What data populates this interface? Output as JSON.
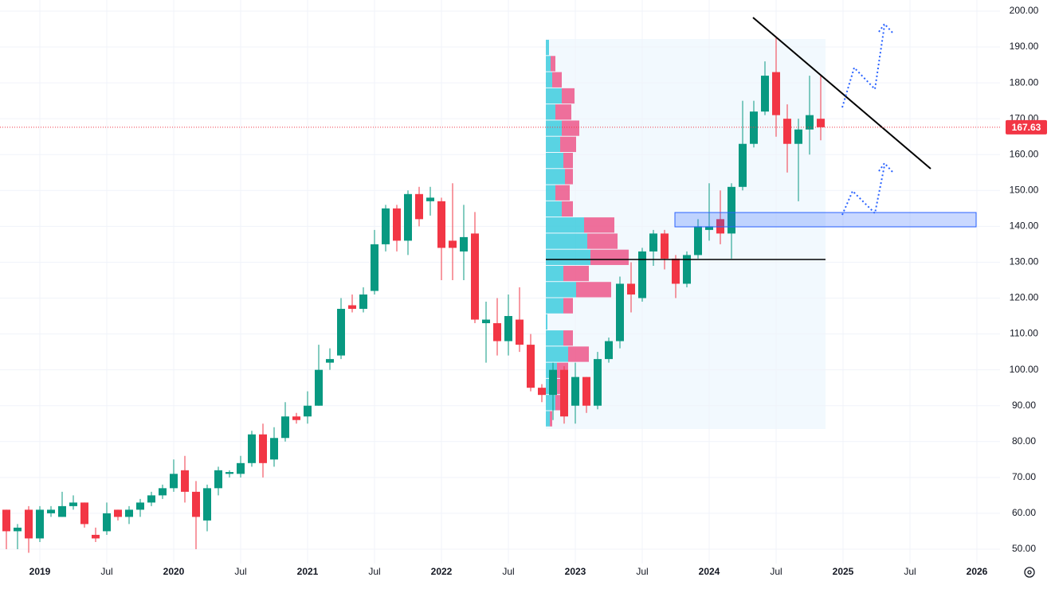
{
  "chart_data": {
    "type": "candlestick",
    "categories": [
      null,
      null,
      null,
      "2019",
      null,
      null,
      null,
      null,
      null,
      "Jul",
      null,
      null,
      null,
      null,
      null,
      "2020",
      null,
      null,
      null,
      null,
      null,
      "Jul",
      null,
      null,
      null,
      null,
      null,
      "2021",
      null,
      null,
      null,
      null,
      null,
      "Jul",
      null,
      null,
      null,
      null,
      null,
      "2022",
      null,
      null,
      null,
      null,
      null,
      "Jul",
      null,
      null,
      null,
      null,
      null,
      "2023",
      null,
      null,
      null,
      null,
      null,
      "Jul",
      null,
      null,
      null,
      null,
      null,
      "2024",
      null,
      null,
      null,
      null,
      null,
      "Jul",
      null,
      null,
      null,
      null,
      null,
      "2025",
      null,
      null,
      null,
      null,
      null,
      "Jul",
      null,
      null,
      null,
      null,
      null,
      "2026"
    ],
    "open": [
      61,
      55,
      61,
      53,
      60,
      59,
      62,
      63,
      54,
      55,
      61,
      59,
      61,
      63,
      65,
      67,
      72,
      66,
      58,
      67,
      71,
      71,
      74,
      82,
      75,
      81,
      87,
      87,
      90,
      102,
      104,
      118,
      117,
      122,
      135,
      145,
      136,
      149,
      147,
      147,
      136,
      133,
      138,
      113,
      113,
      108,
      114,
      107,
      95,
      93,
      100,
      90,
      98,
      90,
      103,
      108,
      124,
      120,
      133,
      138,
      131,
      124,
      132,
      139,
      142,
      138,
      151,
      163,
      172,
      183,
      170,
      163,
      167,
      170,
      null,
      null,
      null,
      null,
      null,
      null,
      null,
      null,
      null,
      null,
      null,
      null,
      null,
      null
    ],
    "high": [
      61,
      57,
      62,
      62,
      62,
      66,
      65,
      63,
      56,
      63,
      61,
      62,
      64,
      66,
      68,
      75,
      76,
      69,
      68,
      73,
      72,
      76,
      83,
      85,
      84,
      91,
      88,
      94,
      107,
      106,
      120,
      121,
      123,
      139,
      146,
      146,
      150,
      151,
      151,
      148,
      152,
      146,
      144,
      119,
      120,
      121,
      123,
      110,
      96,
      102,
      101,
      102,
      98,
      105,
      109,
      126,
      130,
      134,
      139,
      139,
      132,
      133,
      142,
      152,
      150,
      152,
      175,
      175,
      186,
      193,
      174,
      170,
      182,
      182,
      null,
      null,
      null,
      null,
      null,
      null,
      null,
      null,
      null,
      null,
      null,
      null,
      null,
      null
    ],
    "low": [
      50,
      50,
      49,
      52,
      59,
      59,
      61,
      56,
      52,
      54,
      58,
      57,
      59,
      62,
      64,
      66,
      63,
      50,
      55,
      65,
      70,
      70,
      73,
      70,
      73,
      80,
      85,
      85,
      90,
      100,
      103,
      116,
      116,
      121,
      133,
      133,
      132,
      140,
      143,
      125,
      125,
      125,
      113,
      102,
      104,
      104,
      105,
      94,
      91,
      86,
      85,
      85,
      88,
      89,
      102,
      106,
      116,
      119,
      129,
      128,
      120,
      123,
      131,
      136,
      135,
      131,
      150,
      162,
      171,
      165,
      155,
      147,
      160,
      164,
      null,
      null,
      null,
      null,
      null,
      null,
      null,
      null,
      null,
      null,
      null,
      null,
      null,
      null
    ],
    "close": [
      55,
      56,
      53,
      61,
      61,
      62,
      63,
      57,
      53,
      60,
      59,
      61,
      63,
      65,
      67,
      71,
      66,
      59,
      67,
      72,
      71.5,
      74,
      82,
      74,
      81,
      87,
      86,
      90,
      100,
      103,
      117,
      117,
      121,
      135,
      145,
      136,
      149,
      142,
      148,
      134,
      134,
      137,
      114,
      114,
      108,
      115,
      107,
      95,
      93,
      100,
      87,
      98,
      90,
      103,
      108,
      124,
      121,
      133,
      138,
      131,
      124,
      132,
      140,
      140,
      138,
      151,
      163,
      172,
      182,
      171,
      163,
      167,
      171,
      167.63,
      null,
      null,
      null,
      null,
      null,
      null,
      null,
      null,
      null,
      null,
      null,
      null,
      null,
      null
    ],
    "up_color": "#089981",
    "down_color": "#f23645",
    "last_price": 167.63,
    "ylim": [
      46,
      203.1
    ],
    "yticks": [
      {
        "value": 50,
        "label": "50.00"
      },
      {
        "value": 60,
        "label": "60.00"
      },
      {
        "value": 70,
        "label": "70.00"
      },
      {
        "value": 80,
        "label": "80.00"
      },
      {
        "value": 90,
        "label": "90.00"
      },
      {
        "value": 100,
        "label": "100.00"
      },
      {
        "value": 110,
        "label": "110.00"
      },
      {
        "value": 120,
        "label": "120.00"
      },
      {
        "value": 130,
        "label": "130.00"
      },
      {
        "value": 140,
        "label": "140.00"
      },
      {
        "value": 150,
        "label": "150.00"
      },
      {
        "value": 160,
        "label": "160.00"
      },
      {
        "value": 170,
        "label": "170.00"
      },
      {
        "value": 180,
        "label": "180.00"
      },
      {
        "value": 190,
        "label": "190.00"
      },
      {
        "value": 200,
        "label": "200.00"
      }
    ],
    "grid": true,
    "volume_profile": {
      "bins": [
        84,
        88.5,
        93,
        97.5,
        102,
        106.5,
        111,
        115.5,
        120,
        124.5,
        129,
        133.5,
        138,
        142.5,
        147,
        151.5,
        156,
        160.5,
        165,
        169.5,
        174,
        178.5,
        183,
        187.5,
        192
      ],
      "up": [
        5,
        12,
        10,
        14,
        28,
        22,
        2,
        22,
        38,
        22,
        56,
        52,
        48,
        20,
        12,
        24,
        22,
        18,
        20,
        12,
        20,
        8,
        6,
        4
      ],
      "down": [
        3,
        8,
        12,
        14,
        26,
        12,
        0,
        12,
        44,
        32,
        48,
        38,
        38,
        14,
        18,
        10,
        12,
        20,
        22,
        20,
        16,
        12,
        6,
        0
      ]
    }
  }
}
